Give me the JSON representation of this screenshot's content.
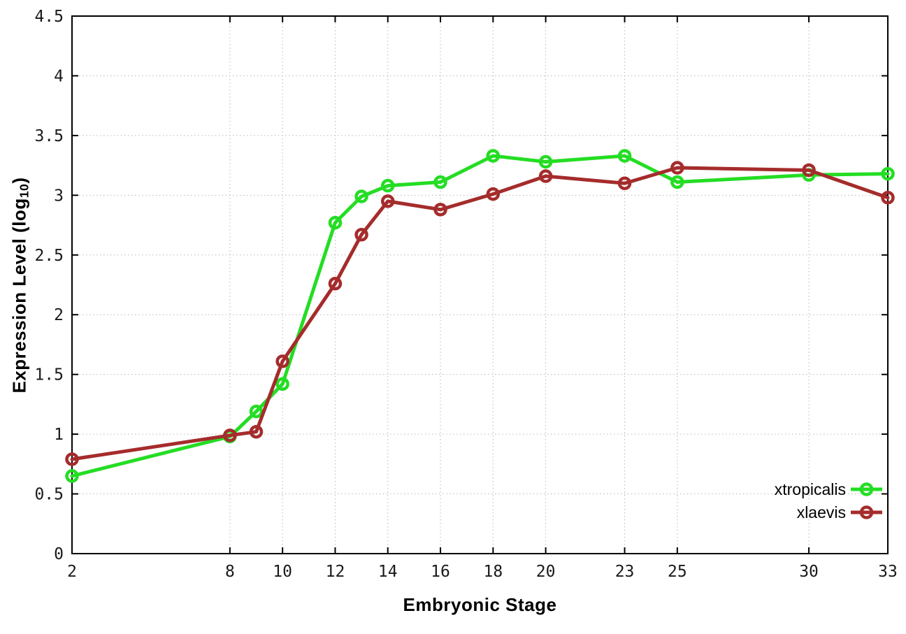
{
  "figure": {
    "xlabel": "Embryonic Stage",
    "ylabel_main": "Expression Level (log",
    "ylabel_sub": "10",
    "ylabel_close": ")"
  },
  "chart_data": {
    "type": "line",
    "title": "",
    "xlabel": "Embryonic Stage",
    "ylabel": "Expression Level (log10)",
    "x": [
      2,
      8,
      9,
      10,
      12,
      13,
      14,
      16,
      18,
      20,
      23,
      25,
      30,
      33
    ],
    "series": [
      {
        "name": "xtropicalis",
        "color": "#24dd24",
        "values": [
          0.65,
          0.98,
          1.19,
          1.42,
          2.77,
          2.99,
          3.08,
          3.11,
          3.33,
          3.28,
          3.33,
          3.11,
          3.17,
          3.18
        ]
      },
      {
        "name": "xlaevis",
        "color": "#a52c2c",
        "values": [
          0.79,
          0.99,
          1.02,
          1.61,
          2.26,
          2.67,
          2.95,
          2.88,
          3.01,
          3.16,
          3.1,
          3.23,
          3.21,
          2.98
        ]
      }
    ],
    "xticks": [
      2,
      8,
      10,
      12,
      14,
      16,
      18,
      20,
      23,
      25,
      30,
      33
    ],
    "xtick_labels": [
      "2",
      "8",
      "10",
      "12",
      "14",
      "16",
      "18",
      "20",
      "23",
      "25",
      "30",
      "33"
    ],
    "yticks": [
      0,
      0.5,
      1,
      1.5,
      2,
      2.5,
      3,
      3.5,
      4,
      4.5
    ],
    "ytick_labels": [
      "0",
      "0.5",
      "1",
      "1.5",
      "2",
      "2.5",
      "3",
      "3.5",
      "4",
      "4.5"
    ],
    "xlim": [
      2,
      33
    ],
    "ylim": [
      0,
      4.5
    ],
    "grid": true,
    "grid_color": "#b8b8b8",
    "axis_color": "#000000",
    "legend_position": "inside-bottom-right",
    "marker": "open-circle"
  }
}
